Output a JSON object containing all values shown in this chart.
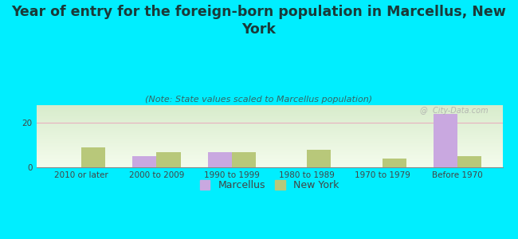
{
  "title": "Year of entry for the foreign-born population in Marcellus, New\nYork",
  "subtitle": "(Note: State values scaled to Marcellus population)",
  "categories": [
    "2010 or later",
    "2000 to 2009",
    "1990 to 1999",
    "1980 to 1989",
    "1970 to 1979",
    "Before 1970"
  ],
  "marcellus_values": [
    0,
    5,
    7,
    0,
    0,
    24
  ],
  "newyork_values": [
    9,
    7,
    7,
    8,
    4,
    5
  ],
  "marcellus_color": "#c9a8e0",
  "newyork_color": "#b8c87a",
  "background_color": "#00eeff",
  "title_fontsize": 12.5,
  "subtitle_fontsize": 8,
  "tick_fontsize": 7.5,
  "legend_fontsize": 9,
  "ylim": [
    0,
    28
  ],
  "yticks": [
    0,
    20
  ],
  "bar_width": 0.32,
  "watermark": "@  City-Data.com"
}
